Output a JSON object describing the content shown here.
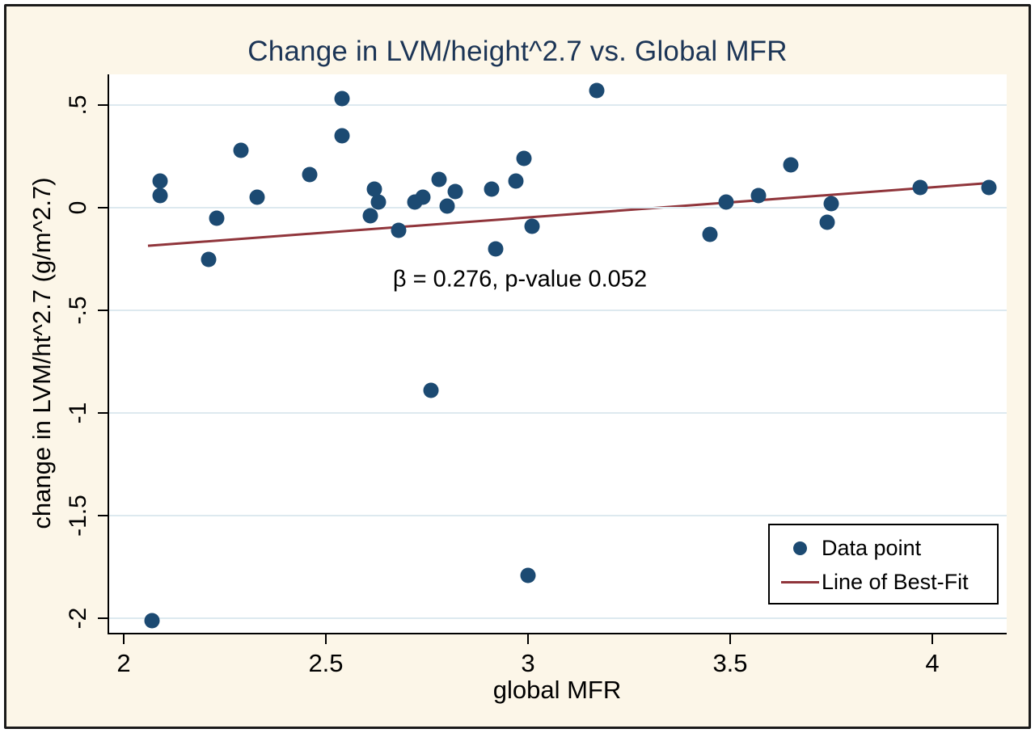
{
  "title": "Change in LVM/height^2.7 vs. Global MFR",
  "colors": {
    "canvas_background": "#fcf6e8",
    "plot_background": "#ffffff",
    "frame_border": "#1a1a1a",
    "title_text": "#1c3556",
    "point": "#1c4a72",
    "trend_line": "#90353b",
    "gridline": "#dde9ef",
    "axis": "#000000"
  },
  "legend": {
    "items": [
      {
        "label": "Data point",
        "marker": "dot"
      },
      {
        "label": "Line of Best-Fit",
        "marker": "line"
      }
    ]
  },
  "chart_data": {
    "type": "scatter",
    "title": "Change in LVM/height^2.7 vs. Global MFR",
    "xlabel": "global MFR",
    "ylabel": "change in LVM/ht^2.7 (g/m^2.7)",
    "grid": "horizontal",
    "legend_position": "inside-bottom-right",
    "x_axis": {
      "min": 1.964,
      "max": 4.184,
      "ticks": [
        2,
        2.5,
        3,
        3.5,
        4
      ],
      "tick_labels": [
        "2",
        "2.5",
        "3",
        "3.5",
        "4"
      ]
    },
    "y_axis": {
      "min": -2.07,
      "max": 0.65,
      "ticks": [
        0.5,
        0,
        -0.5,
        -1,
        -1.5,
        -2
      ],
      "tick_labels": [
        ".5",
        "0",
        "-.5",
        "-1",
        "-1.5",
        "-2"
      ]
    },
    "points": [
      [
        2.07,
        -2.01
      ],
      [
        2.09,
        0.13
      ],
      [
        2.09,
        0.06
      ],
      [
        2.21,
        -0.25
      ],
      [
        2.23,
        -0.05
      ],
      [
        2.29,
        0.28
      ],
      [
        2.33,
        0.05
      ],
      [
        2.46,
        0.16
      ],
      [
        2.54,
        0.53
      ],
      [
        2.54,
        0.35
      ],
      [
        2.61,
        -0.04
      ],
      [
        2.62,
        0.09
      ],
      [
        2.63,
        0.03
      ],
      [
        2.68,
        -0.11
      ],
      [
        2.72,
        0.03
      ],
      [
        2.74,
        0.05
      ],
      [
        2.76,
        -0.89
      ],
      [
        2.78,
        0.14
      ],
      [
        2.8,
        0.01
      ],
      [
        2.82,
        0.08
      ],
      [
        2.91,
        0.09
      ],
      [
        2.92,
        -0.2
      ],
      [
        2.97,
        0.13
      ],
      [
        2.99,
        0.24
      ],
      [
        3.0,
        -1.79
      ],
      [
        3.01,
        -0.09
      ],
      [
        3.17,
        0.57
      ],
      [
        3.45,
        -0.13
      ],
      [
        3.49,
        0.03
      ],
      [
        3.57,
        0.06
      ],
      [
        3.65,
        0.21
      ],
      [
        3.74,
        -0.07
      ],
      [
        3.75,
        0.02
      ],
      [
        3.97,
        0.1
      ],
      [
        4.14,
        0.1
      ]
    ],
    "trend_line": {
      "x1": 2.06,
      "y1": -0.185,
      "x2": 4.15,
      "y2": 0.122,
      "beta": 0.276,
      "p_value": 0.052
    },
    "annotation": {
      "text": "β = 0.276, p-value 0.052",
      "x": 2.98,
      "y": -0.35
    }
  }
}
